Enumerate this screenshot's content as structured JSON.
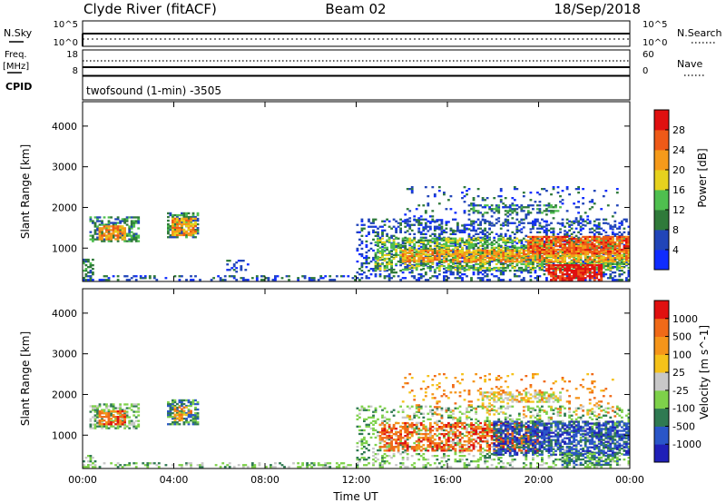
{
  "header": {
    "station": "Clyde River (fitACF)",
    "beam": "Beam 02",
    "date": "18/Sep/2018"
  },
  "status_panels": {
    "nsky": {
      "label": "N.Sky",
      "left_ticks": [
        "10^5",
        "10^0"
      ],
      "right_label": "N.Search",
      "right_ticks": [
        "10^5",
        "10^0"
      ]
    },
    "freq": {
      "label_lines": [
        "Freq.",
        "[MHz]"
      ],
      "left_ticks": [
        "18",
        "8"
      ],
      "right_label": "Nave",
      "right_ticks": [
        "60",
        "0"
      ]
    },
    "cpid": {
      "label": "CPID",
      "value": "twofsound (1-min) -3505"
    }
  },
  "chart_data": [
    {
      "type": "heatmap",
      "name": "power",
      "xlabel": "",
      "ylabel": "Slant Range [km]",
      "xlim": [
        0,
        24
      ],
      "ylim": [
        180,
        4600
      ],
      "yticks": [
        "4000",
        "3000",
        "2000",
        "1000"
      ],
      "colorbar": {
        "label": "Power [dB]",
        "ticks": [
          "28",
          "24",
          "20",
          "16",
          "12",
          "8",
          "4"
        ],
        "colors": [
          "#0f2cff",
          "#2145b8",
          "#2f7a3a",
          "#4fbf4f",
          "#e6d21e",
          "#f59a1a",
          "#ee5a18",
          "#e01010"
        ]
      },
      "regions": [
        {
          "t0": 0.0,
          "t1": 0.5,
          "r0": 200,
          "r1": 700,
          "level": 2,
          "density": 0.45
        },
        {
          "t0": 0.3,
          "t1": 2.5,
          "r0": 1150,
          "r1": 1750,
          "level": 2,
          "density": 0.55
        },
        {
          "t0": 0.7,
          "t1": 1.9,
          "r0": 1200,
          "r1": 1550,
          "level": 5,
          "density": 0.75
        },
        {
          "t0": 3.7,
          "t1": 5.0,
          "r0": 1250,
          "r1": 1850,
          "level": 2,
          "density": 0.6
        },
        {
          "t0": 3.9,
          "t1": 4.9,
          "r0": 1300,
          "r1": 1750,
          "level": 5,
          "density": 0.75
        },
        {
          "t0": 0.0,
          "t1": 12.0,
          "r0": 200,
          "r1": 330,
          "level": 1,
          "density": 0.3
        },
        {
          "t0": 6.3,
          "t1": 7.3,
          "r0": 400,
          "r1": 700,
          "level": 1,
          "density": 0.25
        },
        {
          "t0": 12.0,
          "t1": 24.0,
          "r0": 200,
          "r1": 1700,
          "level": 1,
          "density": 0.3
        },
        {
          "t0": 12.8,
          "t1": 24.0,
          "r0": 450,
          "r1": 1250,
          "level": 3,
          "density": 0.55
        },
        {
          "t0": 14.0,
          "t1": 24.0,
          "r0": 650,
          "r1": 950,
          "level": 5,
          "density": 0.65
        },
        {
          "t0": 19.5,
          "t1": 24.0,
          "r0": 850,
          "r1": 1300,
          "level": 6,
          "density": 0.7
        },
        {
          "t0": 20.3,
          "t1": 22.8,
          "r0": 200,
          "r1": 600,
          "level": 7,
          "density": 0.75
        },
        {
          "t0": 17.0,
          "t1": 21.0,
          "r0": 1850,
          "r1": 2050,
          "level": 2,
          "density": 0.5
        },
        {
          "t0": 14.0,
          "t1": 23.5,
          "r0": 1400,
          "r1": 2500,
          "level": 1,
          "density": 0.1
        }
      ]
    },
    {
      "type": "heatmap",
      "name": "velocity",
      "xlabel": "Time UT",
      "ylabel": "Slant Range [km]",
      "xlim": [
        0,
        24
      ],
      "ylim": [
        180,
        4600
      ],
      "xticks": [
        "00:00",
        "04:00",
        "08:00",
        "12:00",
        "16:00",
        "20:00",
        "00:00"
      ],
      "yticks": [
        "4000",
        "3000",
        "2000",
        "1000"
      ],
      "colorbar": {
        "label": "Velocity [m s^-1]",
        "ticks": [
          "1000",
          "500",
          "100",
          "25",
          "-25",
          "-100",
          "-500",
          "-1000"
        ],
        "colors": [
          "#2020b8",
          "#2a56c8",
          "#2f7a52",
          "#7ed14a",
          "#c8c8c8",
          "#f5c21a",
          "#f5951a",
          "#f06a18",
          "#e01010"
        ]
      },
      "regions": [
        {
          "t0": 0.0,
          "t1": 0.6,
          "r0": 200,
          "r1": 500,
          "level": 3,
          "density": 0.4
        },
        {
          "t0": 0.3,
          "t1": 2.5,
          "r0": 1150,
          "r1": 1750,
          "level": 3,
          "density": 0.5
        },
        {
          "t0": 0.7,
          "t1": 1.9,
          "r0": 1250,
          "r1": 1600,
          "level": 7,
          "density": 0.65
        },
        {
          "t0": 3.7,
          "t1": 5.0,
          "r0": 1250,
          "r1": 1850,
          "level": 2,
          "density": 0.65
        },
        {
          "t0": 4.0,
          "t1": 4.7,
          "r0": 1350,
          "r1": 1700,
          "level": 6,
          "density": 0.4
        },
        {
          "t0": 0.0,
          "t1": 12.0,
          "r0": 200,
          "r1": 330,
          "level": 3,
          "density": 0.3
        },
        {
          "t0": 12.0,
          "t1": 24.0,
          "r0": 200,
          "r1": 1700,
          "level": 3,
          "density": 0.28
        },
        {
          "t0": 13.0,
          "t1": 20.0,
          "r0": 600,
          "r1": 1300,
          "level": 7,
          "density": 0.5
        },
        {
          "t0": 18.0,
          "t1": 24.0,
          "r0": 500,
          "r1": 1350,
          "level": 1,
          "density": 0.6
        },
        {
          "t0": 17.5,
          "t1": 21.0,
          "r0": 1800,
          "r1": 2050,
          "level": 4,
          "density": 0.6
        },
        {
          "t0": 21.0,
          "t1": 23.5,
          "r0": 250,
          "r1": 550,
          "level": 2,
          "density": 0.5
        },
        {
          "t0": 14.0,
          "t1": 23.5,
          "r0": 1400,
          "r1": 2500,
          "level": 6,
          "density": 0.1
        }
      ]
    }
  ]
}
